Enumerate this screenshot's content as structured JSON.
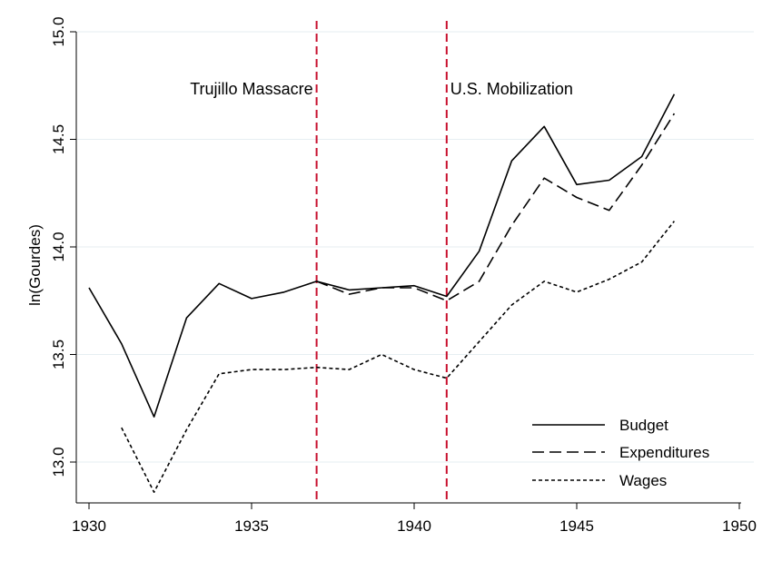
{
  "chart_data": {
    "type": "line",
    "xlabel": "",
    "ylabel": "ln(Gourdes)",
    "xlim": [
      1930,
      1950
    ],
    "ylim": [
      12.85,
      15.0
    ],
    "x_ticks": [
      "1930",
      "1935",
      "1940",
      "1945",
      "1950"
    ],
    "y_ticks": [
      "13.0",
      "13.5",
      "14.0",
      "14.5",
      "15.0"
    ],
    "grid": "horizontal",
    "legend_position": "bottom-right",
    "annotations": [
      {
        "x": 1937,
        "label": "Trujillo Massacre",
        "color": "#c8102e"
      },
      {
        "x": 1941,
        "label": "U.S. Mobilization",
        "color": "#c8102e"
      }
    ],
    "series": [
      {
        "name": "Budget",
        "style": "solid",
        "x": [
          1930,
          1931,
          1932,
          1933,
          1934,
          1935,
          1936,
          1937,
          1938,
          1939,
          1940,
          1941,
          1942,
          1943,
          1944,
          1945,
          1946,
          1947,
          1948
        ],
        "values": [
          13.81,
          13.55,
          13.21,
          13.67,
          13.83,
          13.76,
          13.79,
          13.84,
          13.8,
          13.81,
          13.82,
          13.77,
          13.98,
          14.4,
          14.56,
          14.29,
          14.31,
          14.42,
          14.71
        ]
      },
      {
        "name": "Expenditures",
        "style": "dashed",
        "x": [
          1937,
          1938,
          1939,
          1940,
          1941,
          1942,
          1943,
          1944,
          1945,
          1946,
          1947,
          1948
        ],
        "values": [
          13.84,
          13.78,
          13.81,
          13.81,
          13.75,
          13.84,
          14.1,
          14.32,
          14.23,
          14.17,
          14.38,
          14.62
        ]
      },
      {
        "name": "Wages",
        "style": "dotted",
        "x": [
          1931,
          1932,
          1933,
          1934,
          1935,
          1936,
          1937,
          1938,
          1939,
          1940,
          1941,
          1942,
          1943,
          1944,
          1945,
          1946,
          1947,
          1948
        ],
        "values": [
          13.16,
          12.86,
          13.15,
          13.41,
          13.43,
          13.43,
          13.44,
          13.43,
          13.5,
          13.43,
          13.39,
          13.56,
          13.73,
          13.84,
          13.79,
          13.85,
          13.93,
          14.12
        ]
      }
    ]
  }
}
